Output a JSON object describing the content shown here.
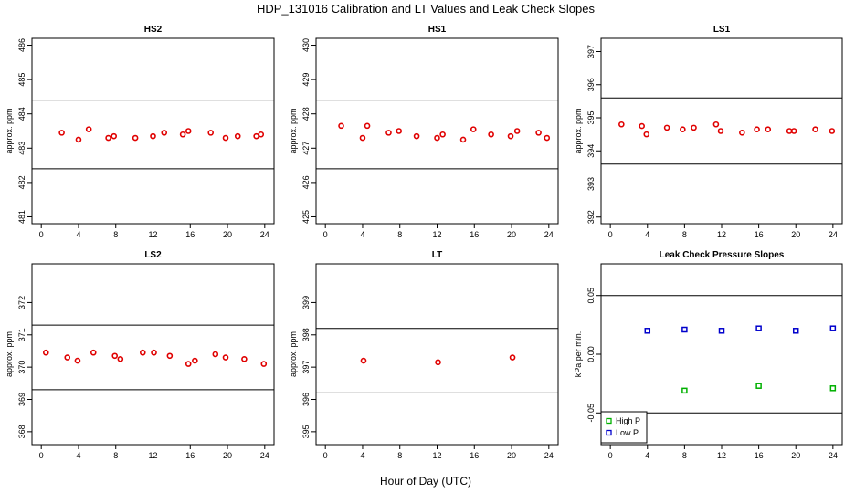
{
  "title": "HDP_131016  Calibration and LT Values and Leak Check Slopes",
  "xlabel": "Hour of Day (UTC)",
  "colors": {
    "points": "#e00000",
    "high_p": "#00b000",
    "low_p": "#0000cc",
    "axes": "#000000"
  },
  "chart_data": [
    {
      "type": "scatter",
      "title": "HS2",
      "ylabel": "approx. ppm",
      "xlim": [
        -1,
        25
      ],
      "ylim": [
        480.8,
        486.2
      ],
      "xticks": [
        "0",
        "4",
        "8",
        "12",
        "16",
        "20",
        "24"
      ],
      "yticks": [
        "481",
        "482",
        "483",
        "484",
        "485",
        "486"
      ],
      "hlines": [
        484.4,
        482.4
      ],
      "series": [
        {
          "marker": "circle",
          "x": [
            2.2,
            4,
            5.1,
            7.2,
            7.8,
            10.1,
            12,
            13.2,
            15.2,
            15.8,
            18.2,
            19.8,
            21.1,
            23.1,
            23.6
          ],
          "y": [
            483.45,
            483.25,
            483.55,
            483.3,
            483.35,
            483.3,
            483.35,
            483.45,
            483.4,
            483.5,
            483.45,
            483.3,
            483.35,
            483.35,
            483.4
          ]
        }
      ]
    },
    {
      "type": "scatter",
      "title": "HS1",
      "ylabel": "approx. ppm",
      "xlim": [
        -1,
        25
      ],
      "ylim": [
        424.8,
        430.2
      ],
      "xticks": [
        "0",
        "4",
        "8",
        "12",
        "16",
        "20",
        "24"
      ],
      "yticks": [
        "425",
        "426",
        "427",
        "428",
        "429",
        "430"
      ],
      "hlines": [
        428.4,
        426.4
      ],
      "series": [
        {
          "marker": "circle",
          "x": [
            1.7,
            4,
            4.5,
            6.8,
            7.9,
            9.8,
            12,
            12.6,
            14.8,
            15.9,
            17.8,
            19.9,
            20.6,
            22.9,
            23.8
          ],
          "y": [
            427.65,
            427.3,
            427.65,
            427.45,
            427.5,
            427.35,
            427.3,
            427.4,
            427.25,
            427.55,
            427.4,
            427.35,
            427.5,
            427.45,
            427.3
          ]
        }
      ]
    },
    {
      "type": "scatter",
      "title": "LS1",
      "ylabel": "approx. ppm",
      "xlim": [
        -1,
        25
      ],
      "ylim": [
        391.8,
        397.4
      ],
      "xticks": [
        "0",
        "4",
        "8",
        "12",
        "16",
        "20",
        "24"
      ],
      "yticks": [
        "392",
        "393",
        "394",
        "395",
        "396",
        "397"
      ],
      "hlines": [
        395.6,
        393.6
      ],
      "series": [
        {
          "marker": "circle",
          "x": [
            1.2,
            3.4,
            3.9,
            6.1,
            7.8,
            9,
            11.4,
            11.9,
            14.2,
            15.8,
            17,
            19.3,
            19.8,
            22.1,
            23.9
          ],
          "y": [
            394.8,
            394.75,
            394.5,
            394.7,
            394.65,
            394.7,
            394.8,
            394.6,
            394.55,
            394.65,
            394.65,
            394.6,
            394.6,
            394.65,
            394.6
          ]
        }
      ]
    },
    {
      "type": "scatter",
      "title": "LS2",
      "ylabel": "approx. ppm",
      "xlim": [
        -1,
        25
      ],
      "ylim": [
        367.6,
        373.2
      ],
      "xticks": [
        "0",
        "4",
        "8",
        "12",
        "16",
        "20",
        "24"
      ],
      "yticks": [
        "368",
        "369",
        "370",
        "371",
        "372"
      ],
      "hlines": [
        371.3,
        369.3
      ],
      "series": [
        {
          "marker": "circle",
          "x": [
            0.5,
            2.8,
            3.9,
            5.6,
            7.9,
            8.5,
            10.9,
            12.1,
            13.8,
            15.8,
            16.5,
            18.7,
            19.8,
            21.8,
            23.9
          ],
          "y": [
            370.45,
            370.3,
            370.2,
            370.45,
            370.35,
            370.25,
            370.45,
            370.45,
            370.35,
            370.1,
            370.2,
            370.4,
            370.3,
            370.25,
            370.1
          ]
        }
      ]
    },
    {
      "type": "scatter",
      "title": "LT",
      "ylabel": "approx. ppm",
      "xlim": [
        -1,
        25
      ],
      "ylim": [
        394.6,
        400.2
      ],
      "xticks": [
        "0",
        "4",
        "8",
        "12",
        "16",
        "20",
        "24"
      ],
      "yticks": [
        "395",
        "396",
        "397",
        "398",
        "399"
      ],
      "hlines": [
        398.2,
        396.2
      ],
      "series": [
        {
          "marker": "circle",
          "x": [
            4.1,
            12.1,
            20.1
          ],
          "y": [
            397.2,
            397.15,
            397.3
          ]
        }
      ]
    },
    {
      "type": "scatter",
      "title": "Leak Check Pressure Slopes",
      "ylabel": "kPa per min.",
      "xlim": [
        -1,
        25
      ],
      "ylim": [
        -0.077,
        0.077
      ],
      "xticks": [
        "0",
        "4",
        "8",
        "12",
        "16",
        "20",
        "24"
      ],
      "yticks": [
        "-0.05",
        "0.00",
        "0.05"
      ],
      "hlines": [
        0.05,
        -0.05
      ],
      "series": [
        {
          "name": "High P",
          "marker": "square",
          "color": "#00b000",
          "x": [
            8,
            16,
            24
          ],
          "y": [
            -0.031,
            -0.027,
            -0.029
          ]
        },
        {
          "name": "Low P",
          "marker": "square",
          "color": "#0000cc",
          "x": [
            4,
            8,
            12,
            16,
            20,
            24
          ],
          "y": [
            0.02,
            0.021,
            0.02,
            0.022,
            0.02,
            0.022
          ]
        }
      ],
      "legend": "bottom-left"
    }
  ]
}
